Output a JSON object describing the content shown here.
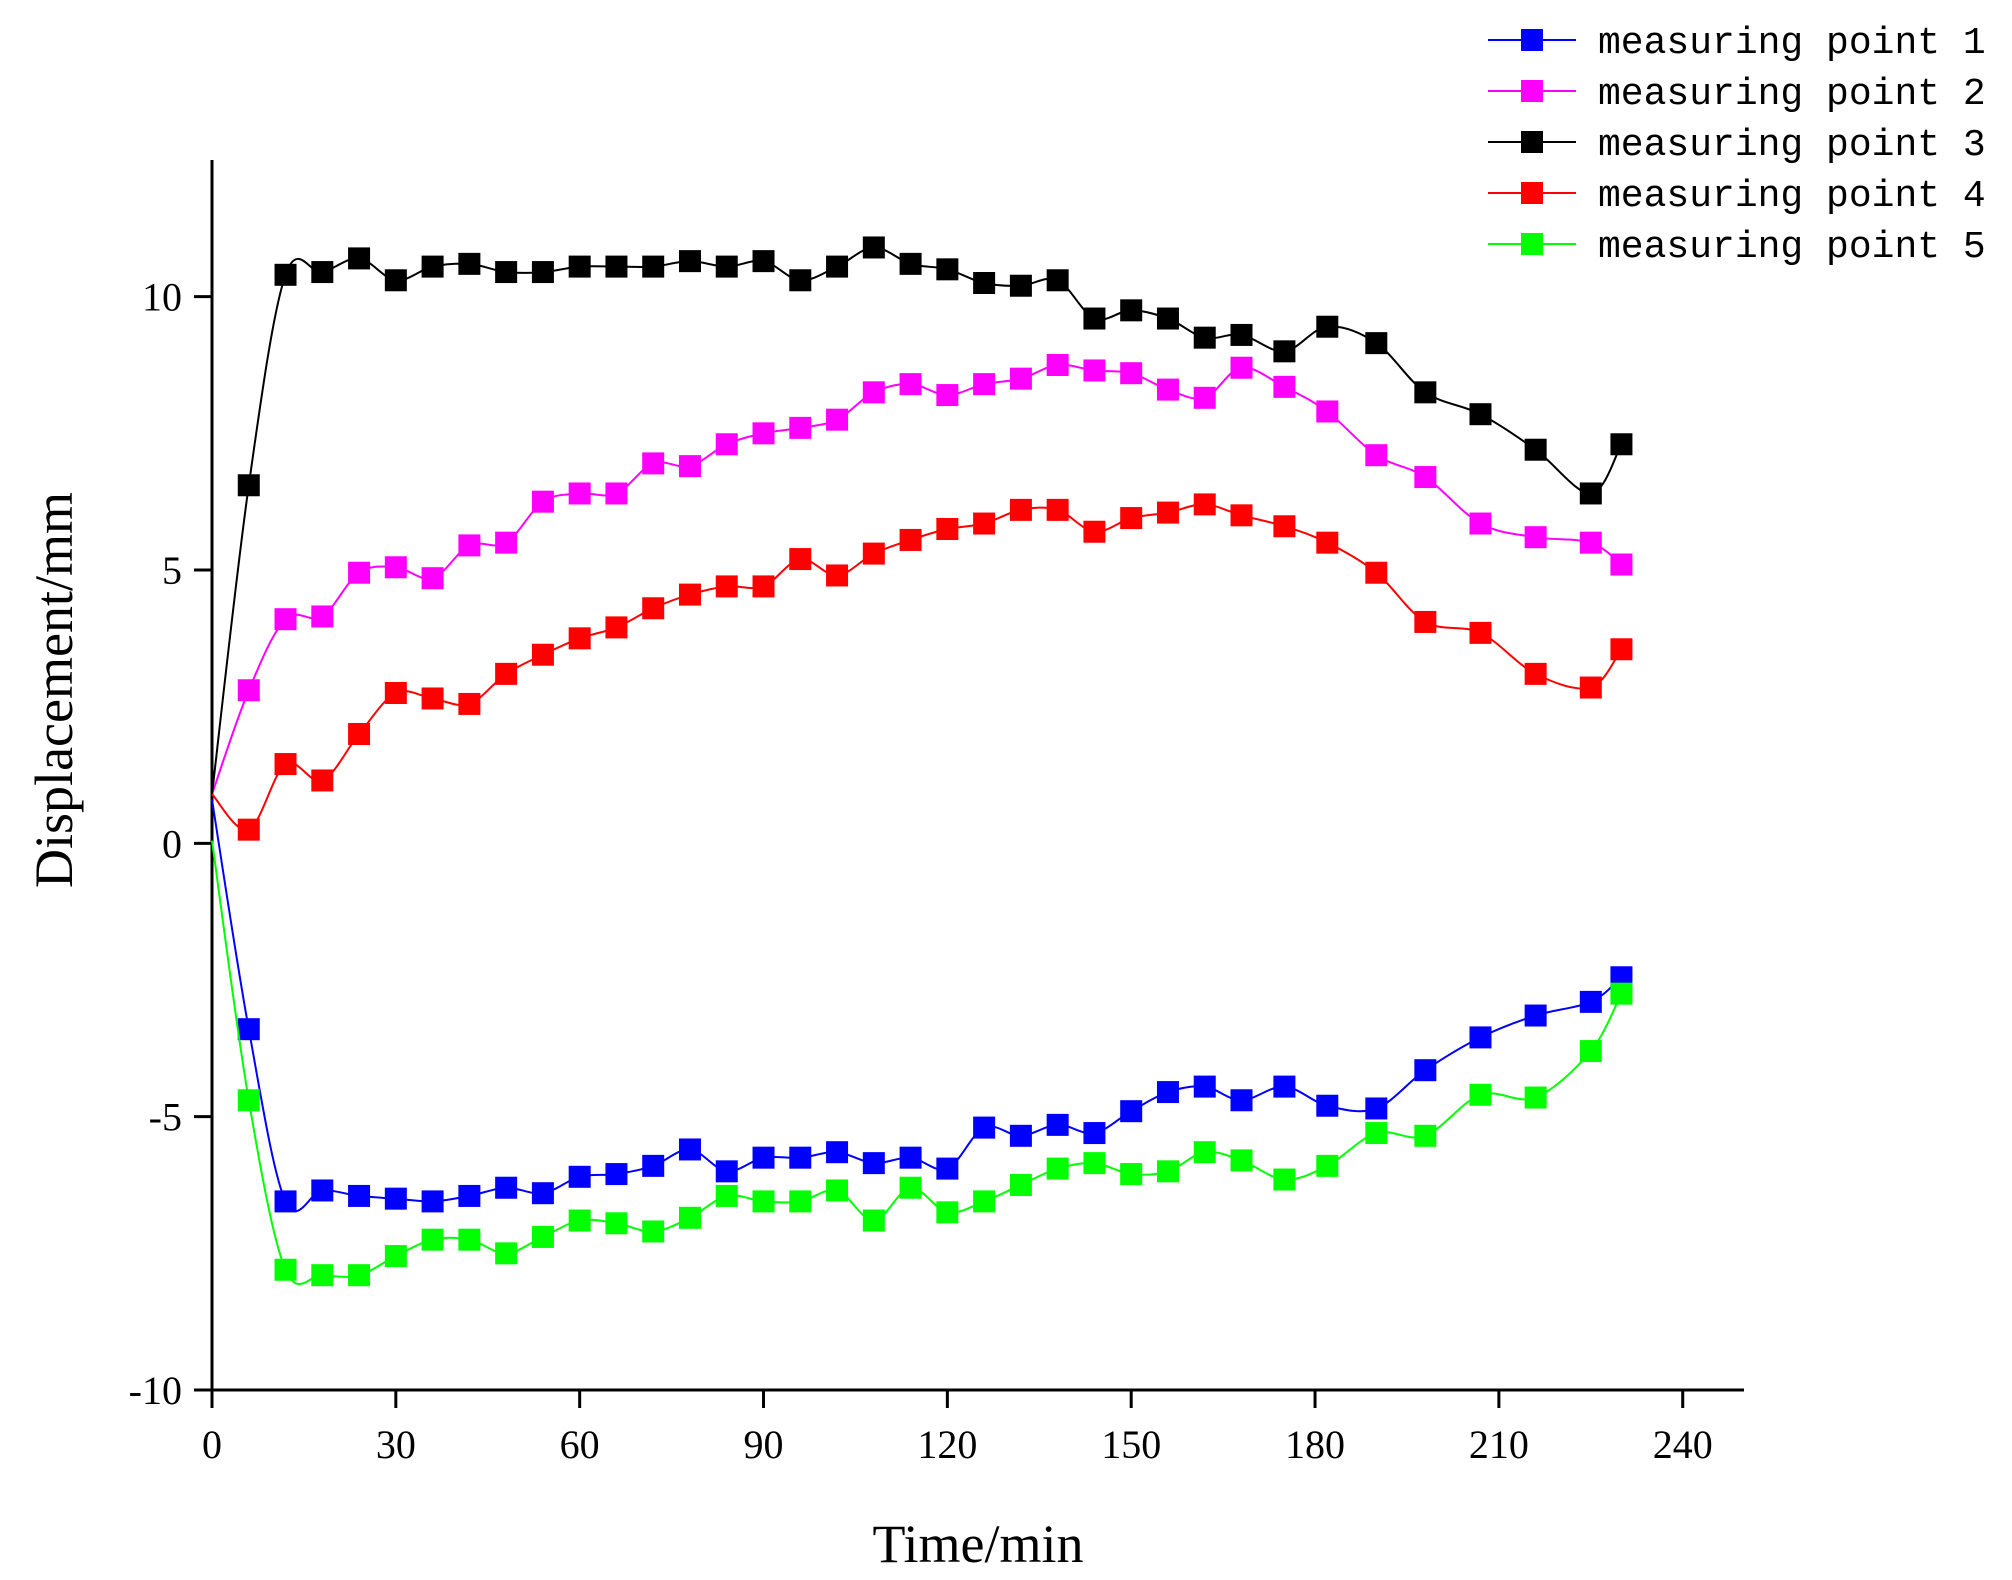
{
  "chart_data": {
    "type": "line",
    "xlabel": "Time/min",
    "ylabel": "Displacement/mm",
    "xlim": [
      0,
      250
    ],
    "ylim": [
      -10,
      12.5
    ],
    "xticks": [
      0,
      30,
      60,
      90,
      120,
      150,
      180,
      210,
      240
    ],
    "yticks": [
      -10,
      -5,
      0,
      5,
      10
    ],
    "xtick_labels": [
      "0",
      "30",
      "60",
      "90",
      "120",
      "150",
      "180",
      "210",
      "240"
    ],
    "ytick_labels": [
      "-10",
      "-5",
      "0",
      "5",
      "10"
    ],
    "legend_position": "top-right",
    "x": [
      0,
      6,
      12,
      18,
      24,
      30,
      36,
      42,
      48,
      54,
      60,
      66,
      72,
      78,
      84,
      90,
      96,
      102,
      108,
      114,
      120,
      126,
      132,
      138,
      144,
      150,
      156,
      162,
      168,
      175,
      182,
      190,
      198,
      207,
      216,
      225,
      230
    ],
    "series": [
      {
        "name": "measuring point 1",
        "color": "#0000ff",
        "values": [
          0.8,
          -3.4,
          -6.55,
          -6.35,
          -6.45,
          -6.5,
          -6.55,
          -6.45,
          -6.3,
          -6.4,
          -6.1,
          -6.05,
          -5.9,
          -5.6,
          -6.0,
          -5.75,
          -5.75,
          -5.65,
          -5.85,
          -5.75,
          -5.95,
          -5.2,
          -5.35,
          -5.15,
          -5.3,
          -4.9,
          -4.55,
          -4.45,
          -4.7,
          -4.45,
          -4.8,
          -4.85,
          -4.15,
          -3.55,
          -3.15,
          -2.9,
          -2.45
        ]
      },
      {
        "name": "measuring point 2",
        "color": "#ff00ff",
        "values": [
          0.9,
          2.8,
          4.1,
          4.15,
          4.95,
          5.05,
          4.85,
          5.45,
          5.5,
          6.25,
          6.4,
          6.4,
          6.95,
          6.9,
          7.3,
          7.5,
          7.6,
          7.75,
          8.25,
          8.4,
          8.2,
          8.4,
          8.5,
          8.75,
          8.65,
          8.6,
          8.3,
          8.15,
          8.7,
          8.35,
          7.9,
          7.1,
          6.7,
          5.85,
          5.6,
          5.5,
          5.1
        ]
      },
      {
        "name": "measuring point 3",
        "color": "#000000",
        "values": [
          0.9,
          6.55,
          10.4,
          10.45,
          10.7,
          10.3,
          10.55,
          10.6,
          10.45,
          10.45,
          10.55,
          10.55,
          10.55,
          10.65,
          10.55,
          10.65,
          10.3,
          10.55,
          10.9,
          10.6,
          10.5,
          10.25,
          10.2,
          10.3,
          9.6,
          9.75,
          9.6,
          9.25,
          9.3,
          9.0,
          9.45,
          9.15,
          8.25,
          7.85,
          7.2,
          6.4,
          7.3
        ]
      },
      {
        "name": "measuring point 4",
        "color": "#ff0000",
        "values": [
          0.9,
          0.25,
          1.45,
          1.15,
          2.0,
          2.75,
          2.65,
          2.55,
          3.1,
          3.45,
          3.75,
          3.95,
          4.3,
          4.55,
          4.7,
          4.7,
          5.2,
          4.9,
          5.3,
          5.55,
          5.75,
          5.85,
          6.1,
          6.1,
          5.7,
          5.95,
          6.05,
          6.2,
          6.0,
          5.8,
          5.5,
          4.95,
          4.05,
          3.85,
          3.1,
          2.85,
          3.55
        ]
      },
      {
        "name": "measuring point 5",
        "color": "#00ff00",
        "values": [
          0.05,
          -4.7,
          -7.8,
          -7.9,
          -7.9,
          -7.55,
          -7.25,
          -7.25,
          -7.5,
          -7.2,
          -6.9,
          -6.95,
          -7.1,
          -6.85,
          -6.45,
          -6.55,
          -6.55,
          -6.35,
          -6.9,
          -6.3,
          -6.75,
          -6.55,
          -6.25,
          -5.95,
          -5.85,
          -6.05,
          -6.0,
          -5.65,
          -5.8,
          -6.15,
          -5.9,
          -5.3,
          -5.35,
          -4.6,
          -4.65,
          -3.8,
          -2.75
        ]
      }
    ]
  }
}
